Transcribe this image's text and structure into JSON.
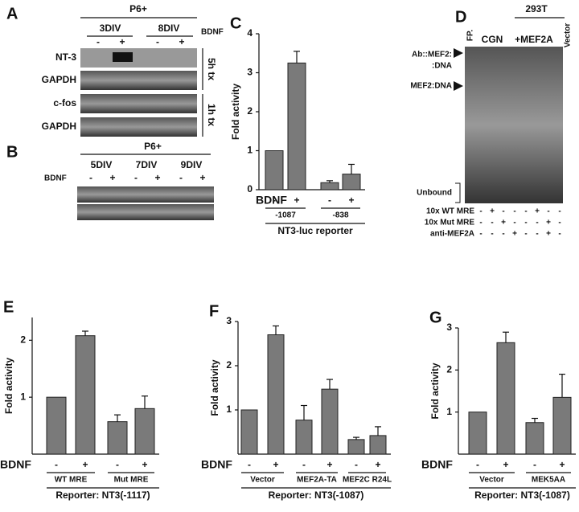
{
  "chart_data": [
    {
      "type": "bar",
      "label": "C",
      "ylabel": "Fold activity",
      "row_label": "BDNF",
      "categories": [
        "-",
        "+",
        "-",
        "+"
      ],
      "groups": [
        "-1087",
        "-838"
      ],
      "reporter": "NT3-luc reporter",
      "values": [
        1,
        3.25,
        0.18,
        0.4
      ],
      "errors": [
        0,
        0.3,
        0.05,
        0.25
      ],
      "color": "#7a7a7a",
      "ylim": [
        0,
        4
      ],
      "yticks": [
        0,
        1,
        2,
        3,
        4
      ]
    },
    {
      "type": "bar",
      "label": "E",
      "ylabel": "Fold activity",
      "row_label": "BDNF",
      "categories": [
        "-",
        "+",
        "-",
        "+"
      ],
      "groups": [
        "WT MRE",
        "Mut MRE"
      ],
      "reporter": "Reporter: NT3(-1117)",
      "values": [
        1,
        2.08,
        0.57,
        0.8
      ],
      "errors": [
        0,
        0.08,
        0.12,
        0.22
      ],
      "color": "#7a7a7a",
      "ylim": [
        0,
        2.4
      ],
      "yticks": [
        1,
        2
      ]
    },
    {
      "type": "bar",
      "label": "F",
      "ylabel": "Fold activity",
      "row_label": "BDNF",
      "categories": [
        "-",
        "+",
        "-",
        "+",
        "-",
        "+"
      ],
      "groups": [
        "Vector",
        "MEF2A-TA",
        "MEF2C R24L"
      ],
      "reporter": "Reporter: NT3(-1087)",
      "values": [
        1,
        2.7,
        0.77,
        1.47,
        0.33,
        0.42
      ],
      "errors": [
        0,
        0.2,
        0.33,
        0.22,
        0.05,
        0.2
      ],
      "color": "#7a7a7a",
      "ylim": [
        0,
        3
      ],
      "yticks": [
        1,
        2,
        3
      ]
    },
    {
      "type": "bar",
      "label": "G",
      "ylabel": "Fold activity",
      "row_label": "BDNF",
      "categories": [
        "-",
        "+",
        "-",
        "+"
      ],
      "groups": [
        "Vector",
        "MEK5AA"
      ],
      "reporter": "Reporter: NT3(-1087)",
      "values": [
        1,
        2.65,
        0.75,
        1.35
      ],
      "errors": [
        0,
        0.25,
        0.1,
        0.55
      ],
      "color": "#7a7a7a",
      "ylim": [
        0,
        3
      ],
      "yticks": [
        1,
        2,
        3
      ]
    }
  ],
  "gels": {
    "A": {
      "label": "A",
      "age": "P6+",
      "conditions": [
        "3DIV",
        "8DIV"
      ],
      "treatment": "BDNF",
      "lanes": [
        "-",
        "+",
        "-",
        "+"
      ],
      "rows": [
        "NT-3",
        "GAPDH",
        "c-fos",
        "GAPDH"
      ],
      "times": [
        "5h tx",
        "1h tx"
      ]
    },
    "B": {
      "label": "B",
      "age": "P6+",
      "conditions": [
        "5DIV",
        "7DIV",
        "9DIV"
      ],
      "treatment": "BDNF",
      "lanes": [
        "-",
        "+",
        "-",
        "+",
        "-",
        "+"
      ]
    },
    "D": {
      "label": "D",
      "cell_line": "293T",
      "lanes_header": [
        "FP.",
        "CGN",
        "+MEF2A",
        "Vector"
      ],
      "bands": [
        "Ab::MEF2:",
        ":DNA",
        "MEF2:DNA",
        "Unbound"
      ],
      "rows": [
        {
          "name": "10x WT MRE",
          "signs": [
            "-",
            "+",
            "-",
            "-",
            "-",
            "+",
            "-",
            "-"
          ]
        },
        {
          "name": "10x Mut MRE",
          "signs": [
            "-",
            "-",
            "+",
            "-",
            "-",
            "-",
            "+",
            "-"
          ]
        },
        {
          "name": "anti-MEF2A",
          "signs": [
            "-",
            "-",
            "-",
            "+",
            "-",
            "-",
            "+",
            "-"
          ]
        }
      ]
    }
  }
}
